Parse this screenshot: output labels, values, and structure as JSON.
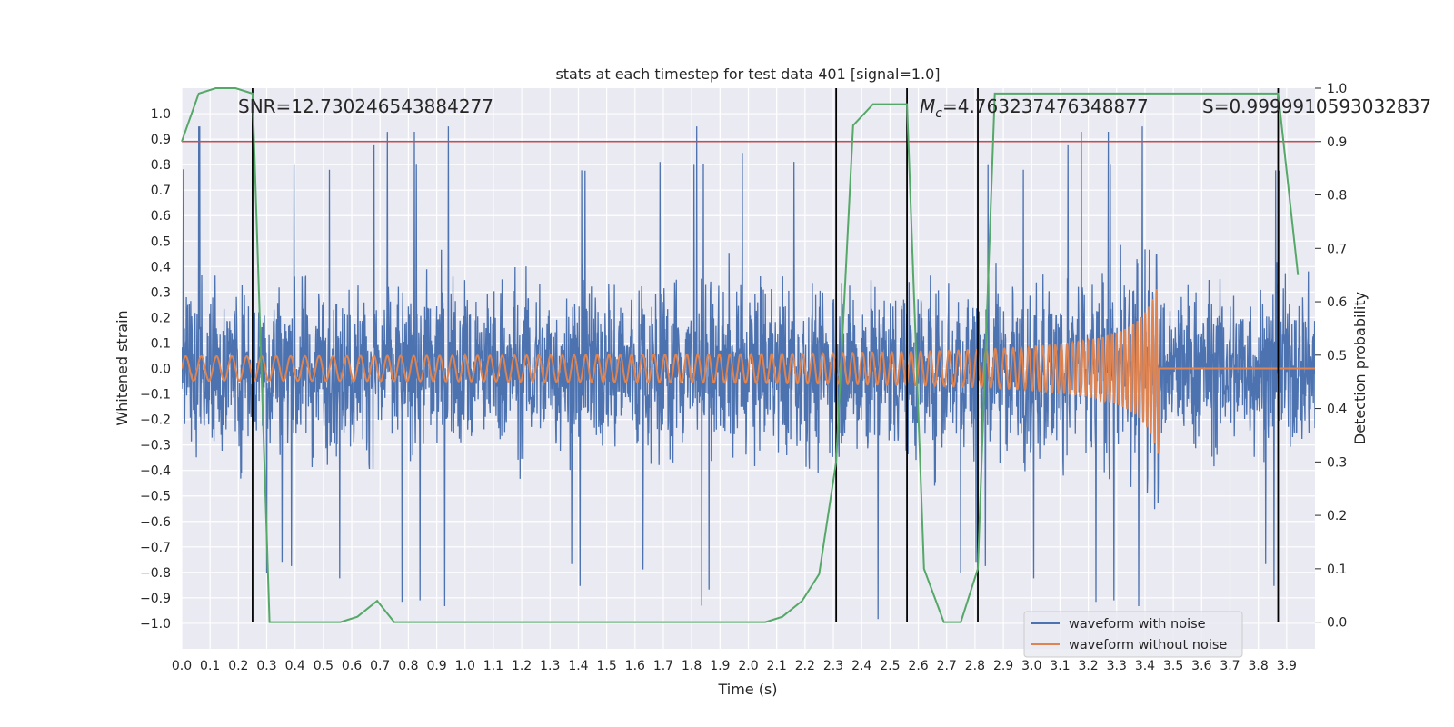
{
  "chart_data": {
    "type": "line",
    "title": "stats at each timestep for test data 401 [signal=1.0]",
    "xlabel": "Time (s)",
    "ylabel": "Whitened strain",
    "ylabel_right": "Detection probability",
    "xlim": [
      0.0,
      4.0
    ],
    "ylim": [
      -1.1,
      1.1
    ],
    "ylim_right": [
      -0.05,
      1.0
    ],
    "x_ticks": [
      "0.0",
      "0.1",
      "0.2",
      "0.3",
      "0.4",
      "0.5",
      "0.6",
      "0.7",
      "0.8",
      "0.9",
      "1.0",
      "1.1",
      "1.2",
      "1.3",
      "1.4",
      "1.5",
      "1.6",
      "1.7",
      "1.8",
      "1.9",
      "2.0",
      "2.1",
      "2.2",
      "2.3",
      "2.4",
      "2.5",
      "2.6",
      "2.7",
      "2.8",
      "2.9",
      "3.0",
      "3.1",
      "3.2",
      "3.3",
      "3.4",
      "3.5",
      "3.6",
      "3.7",
      "3.8",
      "3.9"
    ],
    "y_ticks": [
      "−1.0",
      "−0.9",
      "−0.8",
      "−0.7",
      "−0.6",
      "−0.5",
      "−0.4",
      "−0.3",
      "−0.2",
      "−0.1",
      "0.0",
      "0.1",
      "0.2",
      "0.3",
      "0.4",
      "0.5",
      "0.6",
      "0.7",
      "0.8",
      "0.9",
      "1.0"
    ],
    "y_right_ticks": [
      "0.0",
      "0.1",
      "0.2",
      "0.3",
      "0.4",
      "0.5",
      "0.6",
      "0.7",
      "0.8",
      "0.9",
      "1.0"
    ],
    "annotations": {
      "snr": "SNR=12.730246543884277",
      "mc_symbol": "M",
      "mc_sub": "c",
      "mc_value": "=4.763237476348877",
      "s": "S=0.9999910593032837"
    },
    "threshold_right": 0.9,
    "vertical_lines_x": [
      0.25,
      2.31,
      2.56,
      2.81,
      3.87
    ],
    "series": [
      {
        "name": "waveform with noise",
        "color": "#4c72b0",
        "kind": "noise",
        "amplitude_typical": 0.4,
        "amplitude_peak": 1.0
      },
      {
        "name": "waveform without noise",
        "color": "#dd8452",
        "kind": "chirp",
        "amplitude_start": 0.04,
        "amplitude_peak": 0.35,
        "merger_time": 3.45
      },
      {
        "name": "Detection probability",
        "color": "#55a868",
        "axis": "right",
        "x": [
          0.0,
          0.06,
          0.12,
          0.19,
          0.25,
          0.31,
          0.37,
          0.44,
          0.5,
          0.56,
          0.62,
          0.69,
          0.75,
          0.81,
          2.06,
          2.12,
          2.19,
          2.25,
          2.31,
          2.37,
          2.44,
          2.5,
          2.56,
          2.62,
          2.69,
          2.75,
          2.81,
          2.87,
          3.87,
          3.94
        ],
        "y": [
          0.9,
          0.99,
          1.0,
          1.0,
          0.99,
          0.0,
          0.0,
          0.0,
          0.0,
          0.0,
          0.01,
          0.04,
          0.0,
          0.0,
          0.0,
          0.01,
          0.04,
          0.09,
          0.3,
          0.93,
          0.97,
          0.97,
          0.97,
          0.1,
          0.0,
          0.0,
          0.1,
          0.99,
          0.99,
          0.65
        ]
      }
    ],
    "legend": {
      "placement": "lower-right",
      "entries": [
        "waveform with noise",
        "waveform without noise"
      ]
    }
  }
}
